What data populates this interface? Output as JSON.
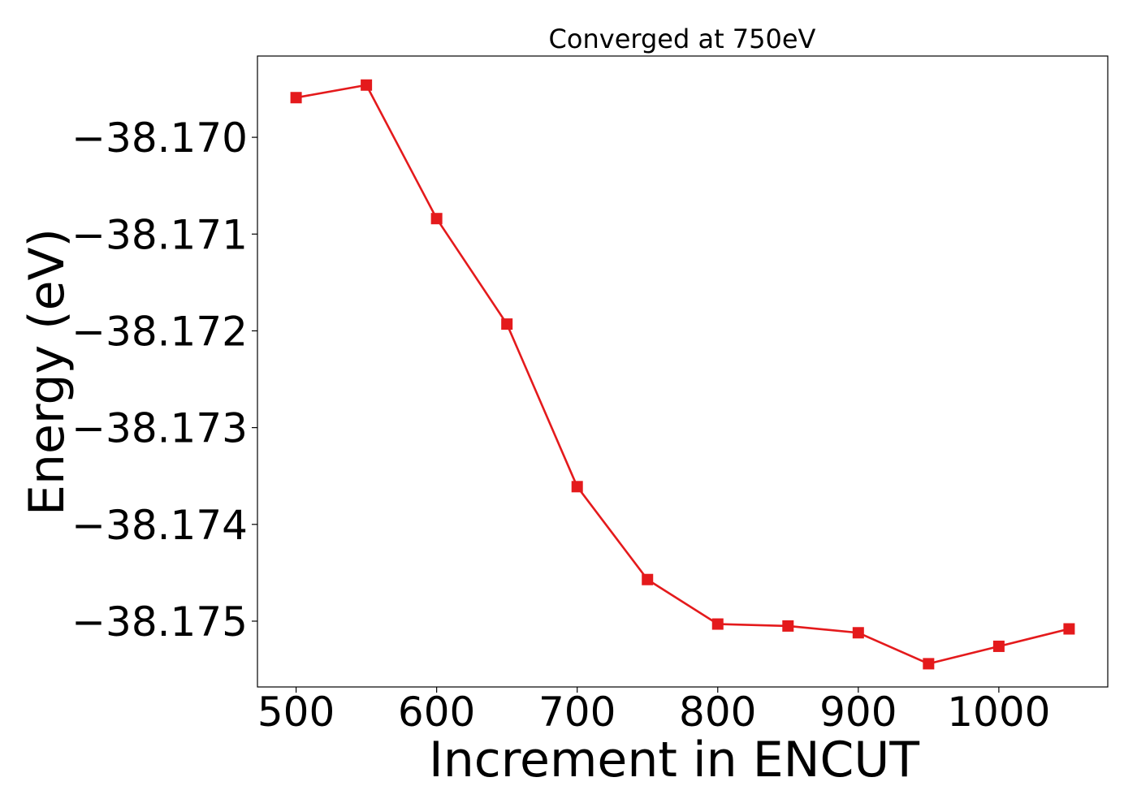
{
  "chart_data": {
    "type": "line",
    "title": "Converged at 750eV",
    "xlabel": "Increment in ENCUT",
    "ylabel": "Energy (eV)",
    "xlim": [
      472.5,
      1077.5
    ],
    "ylim": [
      -38.17568,
      -38.16916
    ],
    "x_ticks": [
      500,
      600,
      700,
      800,
      900,
      1000
    ],
    "x_tick_labels": [
      "500",
      "600",
      "700",
      "800",
      "900",
      "1000"
    ],
    "y_ticks": [
      -38.17,
      -38.171,
      -38.172,
      -38.173,
      -38.174,
      -38.175
    ],
    "y_tick_labels": [
      "−38.170",
      "−38.171",
      "−38.172",
      "−38.173",
      "−38.174",
      "−38.175"
    ],
    "grid": false,
    "legend": "none",
    "series": [
      {
        "color": "#e41a1c",
        "marker": "square",
        "x": [
          500,
          550,
          600,
          650,
          700,
          750,
          800,
          850,
          900,
          950,
          1000,
          1050
        ],
        "y": [
          -38.16959,
          -38.16946,
          -38.17084,
          -38.17193,
          -38.17361,
          -38.17457,
          -38.17503,
          -38.17505,
          -38.17512,
          -38.17544,
          -38.17526,
          -38.17508
        ]
      }
    ]
  }
}
